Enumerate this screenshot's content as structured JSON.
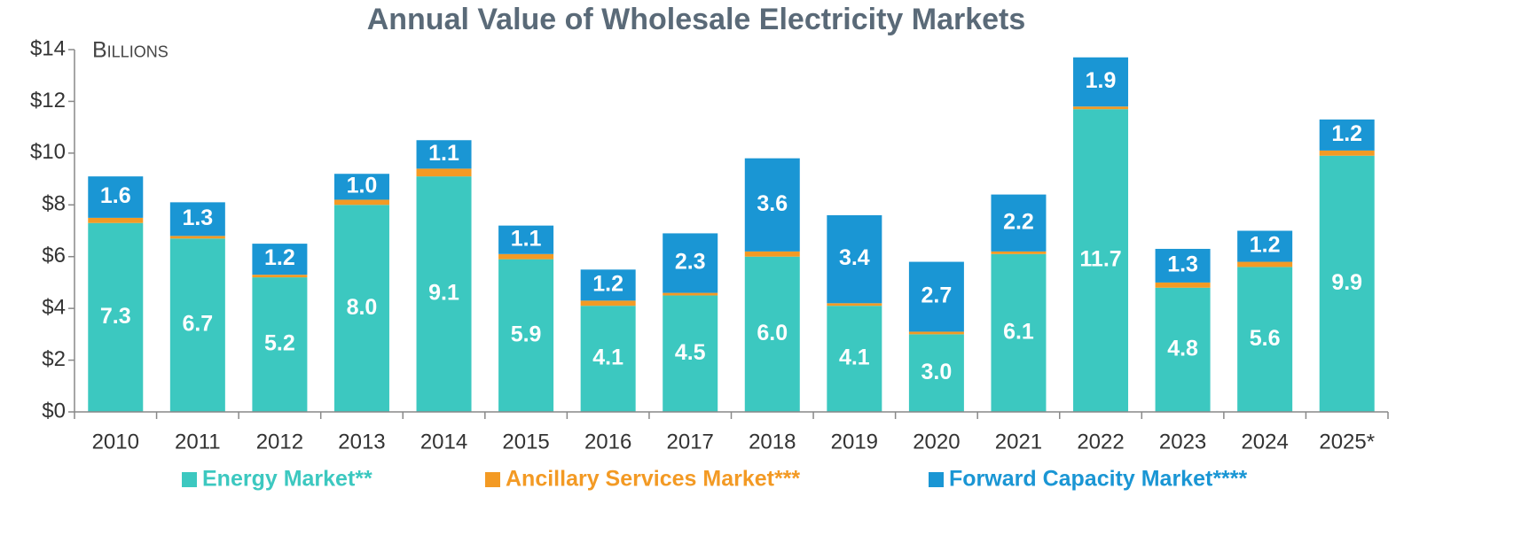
{
  "chart_data": {
    "type": "stacked_bar",
    "title": "Annual Value of Wholesale Electricity Markets",
    "y_unit_label": "Billions",
    "categories": [
      "2010",
      "2011",
      "2012",
      "2013",
      "2014",
      "2015",
      "2016",
      "2017",
      "2018",
      "2019",
      "2020",
      "2021",
      "2022",
      "2023",
      "2024",
      "2025*"
    ],
    "series": [
      {
        "name": "Energy Market**",
        "color": "#3cc8c0",
        "values": [
          7.3,
          6.7,
          5.2,
          8.0,
          9.1,
          5.9,
          4.1,
          4.5,
          6.0,
          4.1,
          3.0,
          6.1,
          11.7,
          4.8,
          5.6,
          9.9
        ],
        "value_labels": [
          "7.3",
          "6.7",
          "5.2",
          "8.0",
          "9.1",
          "5.9",
          "4.1",
          "4.5",
          "6.0",
          "4.1",
          "3.0",
          "6.1",
          "11.7",
          "4.8",
          "5.6",
          "9.9"
        ]
      },
      {
        "name": "Ancillary Services Market***",
        "color": "#f39a24",
        "values": [
          0.2,
          0.1,
          0.1,
          0.2,
          0.3,
          0.2,
          0.2,
          0.1,
          0.2,
          0.1,
          0.1,
          0.1,
          0.1,
          0.2,
          0.2,
          0.2
        ]
      },
      {
        "name": "Forward Capacity Market****",
        "color": "#1a96d4",
        "values": [
          1.6,
          1.3,
          1.2,
          1.0,
          1.1,
          1.1,
          1.2,
          2.3,
          3.6,
          3.4,
          2.7,
          2.2,
          1.9,
          1.3,
          1.2,
          1.2
        ],
        "value_labels": [
          "1.6",
          "1.3",
          "1.2",
          "1.0",
          "1.1",
          "1.1",
          "1.2",
          "2.3",
          "3.6",
          "3.4",
          "2.7",
          "2.2",
          "1.9",
          "1.3",
          "1.2",
          "1.2"
        ]
      }
    ],
    "ylim": [
      0,
      14
    ],
    "yticks": [
      {
        "value": 0,
        "label": "$0"
      },
      {
        "value": 2,
        "label": "$2"
      },
      {
        "value": 4,
        "label": "$4"
      },
      {
        "value": 6,
        "label": "$6"
      },
      {
        "value": 8,
        "label": "$8"
      },
      {
        "value": 10,
        "label": "$10"
      },
      {
        "value": 12,
        "label": "$12"
      },
      {
        "value": 14,
        "label": "$14"
      }
    ],
    "grid": false,
    "legend": "bottom"
  }
}
